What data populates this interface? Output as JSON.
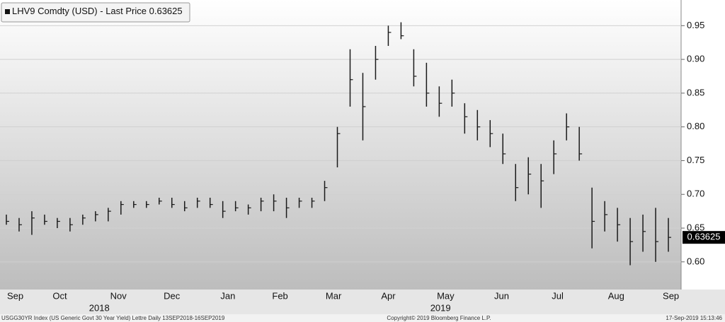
{
  "chart_data": {
    "type": "range-bar",
    "legend": "LHV9 Comdty (USD) - Last Price",
    "last_price": 0.63625,
    "color": "#1a1a1a",
    "series": [
      {
        "name": "LHV9 Comdty (USD) - Last Price",
        "high": [
          0.67,
          0.665,
          0.675,
          0.67,
          0.665,
          0.665,
          0.67,
          0.675,
          0.68,
          0.69,
          0.69,
          0.69,
          0.695,
          0.695,
          0.69,
          0.695,
          0.695,
          0.69,
          0.69,
          0.685,
          0.695,
          0.7,
          0.695,
          0.695,
          0.695,
          0.72,
          0.8,
          0.915,
          0.88,
          0.92,
          0.95,
          0.955,
          0.915,
          0.895,
          0.86,
          0.87,
          0.835,
          0.825,
          0.81,
          0.79,
          0.745,
          0.755,
          0.745,
          0.78,
          0.82,
          0.8,
          0.71,
          0.69,
          0.68,
          0.665,
          0.67,
          0.68,
          0.665
        ],
        "low": [
          0.655,
          0.645,
          0.64,
          0.655,
          0.65,
          0.645,
          0.655,
          0.66,
          0.66,
          0.67,
          0.68,
          0.68,
          0.685,
          0.68,
          0.675,
          0.68,
          0.68,
          0.665,
          0.675,
          0.67,
          0.675,
          0.675,
          0.665,
          0.68,
          0.68,
          0.69,
          0.74,
          0.83,
          0.78,
          0.87,
          0.92,
          0.93,
          0.86,
          0.83,
          0.815,
          0.83,
          0.79,
          0.78,
          0.77,
          0.745,
          0.69,
          0.7,
          0.68,
          0.73,
          0.78,
          0.75,
          0.62,
          0.645,
          0.63,
          0.595,
          0.615,
          0.6,
          0.615
        ],
        "close": [
          0.66,
          0.655,
          0.665,
          0.66,
          0.66,
          0.655,
          0.665,
          0.67,
          0.675,
          0.685,
          0.685,
          0.685,
          0.69,
          0.685,
          0.68,
          0.69,
          0.685,
          0.675,
          0.68,
          0.68,
          0.69,
          0.69,
          0.68,
          0.69,
          0.69,
          0.71,
          0.79,
          0.87,
          0.83,
          0.9,
          0.94,
          0.935,
          0.875,
          0.85,
          0.835,
          0.85,
          0.815,
          0.8,
          0.79,
          0.76,
          0.71,
          0.73,
          0.72,
          0.76,
          0.8,
          0.76,
          0.66,
          0.67,
          0.655,
          0.63,
          0.645,
          0.63,
          0.63625
        ]
      }
    ],
    "xlim": [
      0,
      53.5
    ],
    "xticks": [
      {
        "value": 1.2,
        "label": "Sep"
      },
      {
        "value": 4.7,
        "label": "Oct"
      },
      {
        "value": 9.3,
        "label": "Nov"
      },
      {
        "value": 13.5,
        "label": "Dec"
      },
      {
        "value": 17.9,
        "label": "Jan"
      },
      {
        "value": 22.0,
        "label": "Feb"
      },
      {
        "value": 26.2,
        "label": "Mar"
      },
      {
        "value": 30.5,
        "label": "Apr"
      },
      {
        "value": 35.0,
        "label": "May"
      },
      {
        "value": 39.4,
        "label": "Jun"
      },
      {
        "value": 43.8,
        "label": "Jul"
      },
      {
        "value": 48.4,
        "label": "Aug"
      },
      {
        "value": 52.7,
        "label": "Sep"
      }
    ],
    "years": [
      {
        "value": 7.8,
        "label": "2018"
      },
      {
        "value": 34.6,
        "label": "2019"
      }
    ],
    "ylim": [
      0.559,
      0.988
    ],
    "yticks": [
      {
        "value": 0.6,
        "label": "0.60"
      },
      0.65,
      {
        "value": 0.7,
        "label": "0.70"
      },
      0.75,
      {
        "value": 0.8,
        "label": "0.80"
      },
      0.85,
      {
        "value": 0.9,
        "label": "0.90"
      },
      0.95
    ],
    "grid": true,
    "footer": {
      "left": "USGG30YR Index (US Generic Govt 30 Year Yield) Lettre  Daily 13SEP2018-16SEP2019",
      "center": "Copyright© 2019 Bloomberg Finance L.P.",
      "right": "17-Sep-2019 15:13:46"
    }
  }
}
